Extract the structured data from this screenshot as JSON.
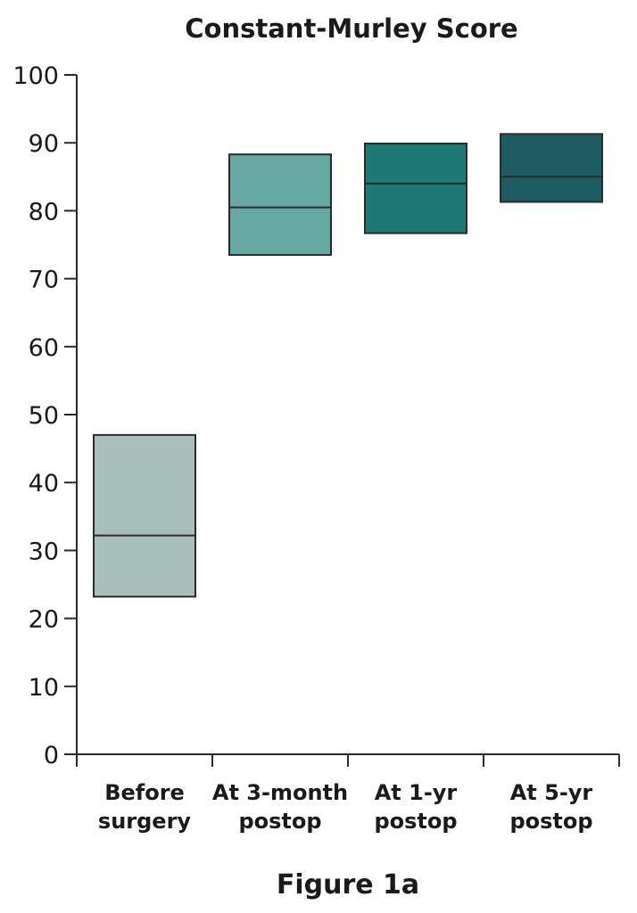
{
  "chart_data": {
    "type": "box",
    "title": "Constant-Murley Score",
    "xlabel": "",
    "ylabel": "",
    "ylim": [
      0,
      100
    ],
    "yticks": [
      0,
      10,
      20,
      30,
      40,
      50,
      60,
      70,
      80,
      90,
      100
    ],
    "grid": false,
    "categories": [
      [
        "Before",
        "surgery"
      ],
      [
        "At 3-month",
        "postop"
      ],
      [
        "At 1-yr",
        "postop"
      ],
      [
        "At 5-yr",
        "postop"
      ]
    ],
    "boxes": [
      {
        "q1": 23.2,
        "median": 32.2,
        "q3": 47.0,
        "color": "#a9bfba"
      },
      {
        "q1": 73.5,
        "median": 80.5,
        "q3": 88.3,
        "color": "#66a8a2"
      },
      {
        "q1": 76.7,
        "median": 84.0,
        "q3": 89.9,
        "color": "#1e7876"
      },
      {
        "q1": 81.3,
        "median": 85.0,
        "q3": 91.3,
        "color": "#1e5b61"
      }
    ]
  },
  "caption": "Figure 1a"
}
